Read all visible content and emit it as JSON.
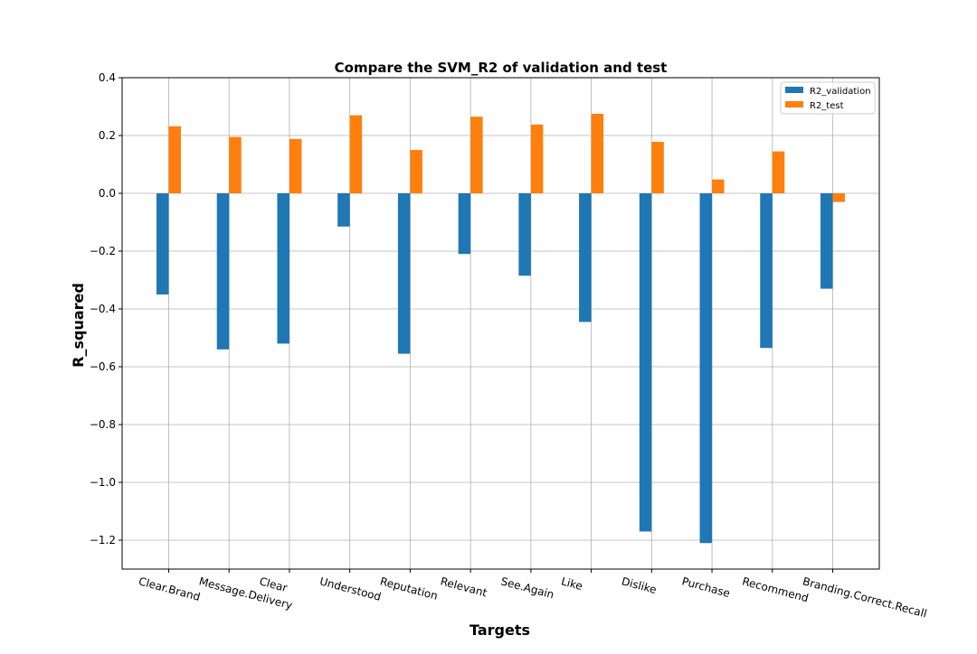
{
  "chart_data": {
    "type": "bar",
    "title": "Compare the SVM_R2 of validation and test",
    "xlabel": "Targets",
    "ylabel": "R_squared",
    "categories": [
      "Clear.Brand",
      "Message.Delivery",
      "Clear",
      "Understood",
      "Reputation",
      "Relevant",
      "See.Again",
      "Like",
      "Dislike",
      "Purchase",
      "Recommend",
      "Branding.Correct.Recall"
    ],
    "series": [
      {
        "name": "R2_validation",
        "color": "#1f77b4",
        "values": [
          -0.35,
          -0.54,
          -0.52,
          -0.115,
          -0.555,
          -0.21,
          -0.285,
          -0.445,
          -1.17,
          -1.21,
          -0.535,
          -0.33
        ]
      },
      {
        "name": "R2_test",
        "color": "#ff7f0e",
        "values": [
          0.232,
          0.195,
          0.188,
          0.27,
          0.15,
          0.265,
          0.238,
          0.275,
          0.178,
          0.048,
          0.145,
          -0.03
        ]
      }
    ],
    "ylim": [
      -1.3,
      0.4
    ],
    "yticks": [
      0.4,
      0.2,
      0.0,
      -0.2,
      -0.4,
      -0.6,
      -0.8,
      -1.0,
      -1.2
    ],
    "ytick_labels": [
      "0.4",
      "0.2",
      "0.0",
      "−0.2",
      "−0.4",
      "−0.6",
      "−0.8",
      "−1.0",
      "−1.2"
    ],
    "grid": true,
    "legend_position": "top-right",
    "xtick_rotation": -15
  }
}
